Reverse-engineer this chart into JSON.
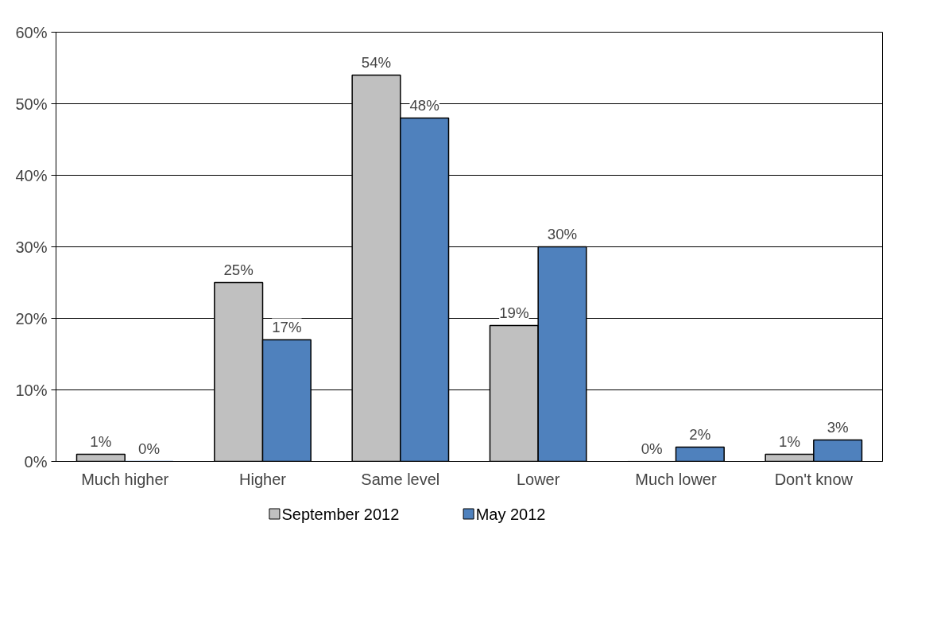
{
  "chart_data": {
    "type": "bar",
    "categories": [
      "Much higher",
      "Higher",
      "Same level",
      "Lower",
      "Much lower",
      "Don't know"
    ],
    "series": [
      {
        "name": "September 2012",
        "color": "#c0c0c0",
        "values": [
          1,
          25,
          54,
          19,
          0,
          1
        ],
        "value_labels": [
          "1%",
          "25%",
          "54%",
          "19%",
          "0%",
          "1%"
        ]
      },
      {
        "name": "May 2012",
        "color": "#4f81bd",
        "values": [
          0,
          17,
          48,
          30,
          2,
          3
        ],
        "value_labels": [
          "0%",
          "17%",
          "48%",
          "30%",
          "2%",
          "3%"
        ]
      }
    ],
    "ylim": [
      0,
      60
    ],
    "yticks": [
      {
        "value": 0,
        "label": "0%"
      },
      {
        "value": 10,
        "label": "10%"
      },
      {
        "value": 20,
        "label": "20%"
      },
      {
        "value": 30,
        "label": "30%"
      },
      {
        "value": 40,
        "label": "40%"
      },
      {
        "value": 50,
        "label": "50%"
      },
      {
        "value": 60,
        "label": "60%"
      }
    ],
    "grid": "y",
    "legend": "bottom"
  }
}
